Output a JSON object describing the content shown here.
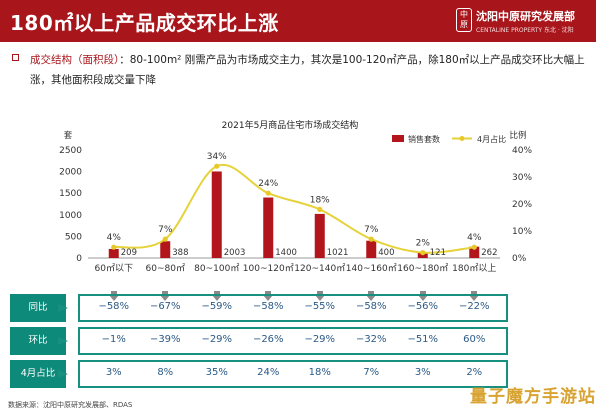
{
  "header": {
    "title": "180㎡以上产品成交环比上涨",
    "logo_text": "中原",
    "brand_name": "沈阳中原研究发展部",
    "brand_sub": "CENTALINE PROPERTY   东北 · 沈阳"
  },
  "description": {
    "key": "成交结构（面积段）",
    "text": "：80-100m² 刚需产品为市场成交主力，其次是100-120㎡产品，除180㎡以上产品成交环比大幅上涨，其他面积段成交量下降"
  },
  "chart_data": {
    "type": "bar",
    "title": "2021年5月商品住宅市场成交结构",
    "categories": [
      "60㎡以下",
      "60~80㎡",
      "80~100㎡",
      "100~120㎡",
      "120~140㎡",
      "140~160㎡",
      "160~180㎡",
      "180㎡以上"
    ],
    "series": [
      {
        "name": "销售套数",
        "kind": "bar",
        "axis": "left",
        "values": [
          209,
          388,
          2003,
          1400,
          1021,
          400,
          121,
          262
        ],
        "labels": [
          "209",
          "388",
          "2003",
          "1400",
          "1021",
          "400",
          "121",
          "262"
        ]
      },
      {
        "name": "4月占比",
        "kind": "line",
        "axis": "right",
        "values": [
          4,
          7,
          34,
          24,
          18,
          7,
          2,
          4
        ],
        "labels": [
          "4%",
          "7%",
          "34%",
          "24%",
          "18%",
          "7%",
          "2%",
          "4%"
        ]
      }
    ],
    "ylabel_left": "套",
    "ylabel_right": "比例",
    "ylim_left": [
      0,
      2500
    ],
    "ylim_right": [
      0,
      40
    ],
    "yticks_left": [
      "0",
      "500",
      "1000",
      "1500",
      "2000",
      "2500"
    ],
    "yticks_right": [
      "0%",
      "10%",
      "20%",
      "30%",
      "40%"
    ],
    "legend_position": "top-right",
    "colors": {
      "bar": "#b3151c",
      "line": "#e6d23a",
      "line_marker": "#e8c92a"
    }
  },
  "tables": {
    "rows": [
      {
        "label": "同比",
        "values": [
          "−58%",
          "−67%",
          "−59%",
          "−58%",
          "−55%",
          "−58%",
          "−56%",
          "−22%"
        ]
      },
      {
        "label": "环比",
        "values": [
          "−1%",
          "−39%",
          "−29%",
          "−26%",
          "−29%",
          "−32%",
          "−51%",
          "60%"
        ]
      },
      {
        "label": "4月占比",
        "values": [
          "3%",
          "8%",
          "35%",
          "24%",
          "18%",
          "7%",
          "3%",
          "2%"
        ]
      }
    ]
  },
  "footer": {
    "source": "数据来源：沈阳中原研究发展部、RDAS"
  },
  "watermark": {
    "text": "量子魔方手游站"
  }
}
